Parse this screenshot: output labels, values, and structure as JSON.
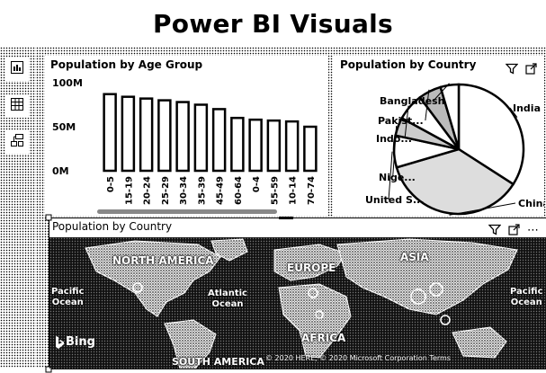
{
  "page": {
    "title": "Power BI Visuals"
  },
  "rail": {
    "items": [
      {
        "name": "report-view",
        "icon": "bar-chart-icon"
      },
      {
        "name": "data-view",
        "icon": "table-icon"
      },
      {
        "name": "model-view",
        "icon": "model-icon"
      }
    ]
  },
  "visuals": {
    "age_chart": {
      "title": "Population by Age Group"
    },
    "pie_chart": {
      "title": "Population by Country"
    },
    "map": {
      "title": "Population by Country",
      "continents": [
        "NORTH AMERICA",
        "EUROPE",
        "ASIA",
        "AFRICA",
        "SOUTH AMERICA"
      ],
      "oceans": [
        {
          "l1": "Pacific",
          "l2": "Ocean"
        },
        {
          "l1": "Atlantic",
          "l2": "Ocean"
        },
        {
          "l1": "Pacific",
          "l2": "Ocean"
        }
      ],
      "bing": "Bing",
      "attribution": "© 2020 HERE, © 2020 Microsoft Corporation Terms"
    }
  },
  "chart_data": [
    {
      "type": "bar",
      "title": "Population by Age Group",
      "categories": [
        "0-5",
        "15-19",
        "20-24",
        "25-29",
        "30-34",
        "35-39",
        "45-49",
        "60-64",
        "0-4",
        "55-59",
        "10-14",
        "70-74"
      ],
      "values": [
        87,
        84,
        82,
        80,
        78,
        75,
        70,
        60,
        58,
        57,
        56,
        50
      ],
      "yticks": [
        "100M",
        "50M",
        "0M"
      ],
      "ylim": [
        0,
        100
      ]
    },
    {
      "type": "pie",
      "title": "Population by Country",
      "labels": [
        "India",
        "China",
        "United S...",
        "Nige...",
        "Indo...",
        "Pakist...",
        "Bangladesh"
      ],
      "values": [
        30,
        32,
        7,
        4,
        6,
        5,
        4
      ],
      "fills": [
        "#ffffff",
        "#dddddd",
        "#ffffff",
        "#cccccc",
        "#ffffff",
        "#bbbbbb",
        "#ffffff"
      ]
    }
  ]
}
